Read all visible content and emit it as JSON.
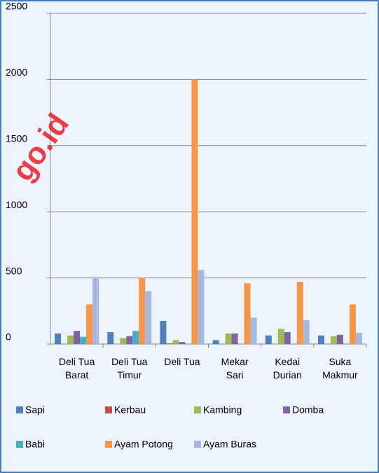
{
  "chart_data": {
    "type": "bar",
    "watermark": "go.id",
    "categories": [
      "Deli Tua Barat",
      "Deli Tua Timur",
      "Deli Tua",
      "Mekar Sari",
      "Kedai Durian",
      "Suka Makmur"
    ],
    "series": [
      {
        "name": "Sapi",
        "color": "#4f81bd",
        "values": [
          80,
          90,
          175,
          30,
          65,
          65
        ]
      },
      {
        "name": "Kerbau",
        "color": "#c0504d",
        "values": [
          0,
          0,
          5,
          0,
          0,
          0
        ]
      },
      {
        "name": "Kambing",
        "color": "#9bbb59",
        "values": [
          65,
          45,
          30,
          80,
          115,
          60
        ]
      },
      {
        "name": "Domba",
        "color": "#8064a2",
        "values": [
          100,
          60,
          15,
          80,
          90,
          70
        ]
      },
      {
        "name": "Babi",
        "color": "#4bacc6",
        "values": [
          55,
          100,
          0,
          0,
          0,
          0
        ]
      },
      {
        "name": "Ayam Potong",
        "color": "#f79646",
        "values": [
          300,
          500,
          2000,
          460,
          470,
          300
        ]
      },
      {
        "name": "Ayam Buras",
        "color": "#a5b8e0",
        "values": [
          505,
          400,
          560,
          200,
          180,
          85
        ]
      }
    ],
    "ylim": [
      0,
      2500
    ],
    "yticks": [
      0,
      500,
      1000,
      1500,
      2000,
      2500
    ],
    "grid": true,
    "legend": "bottom"
  }
}
